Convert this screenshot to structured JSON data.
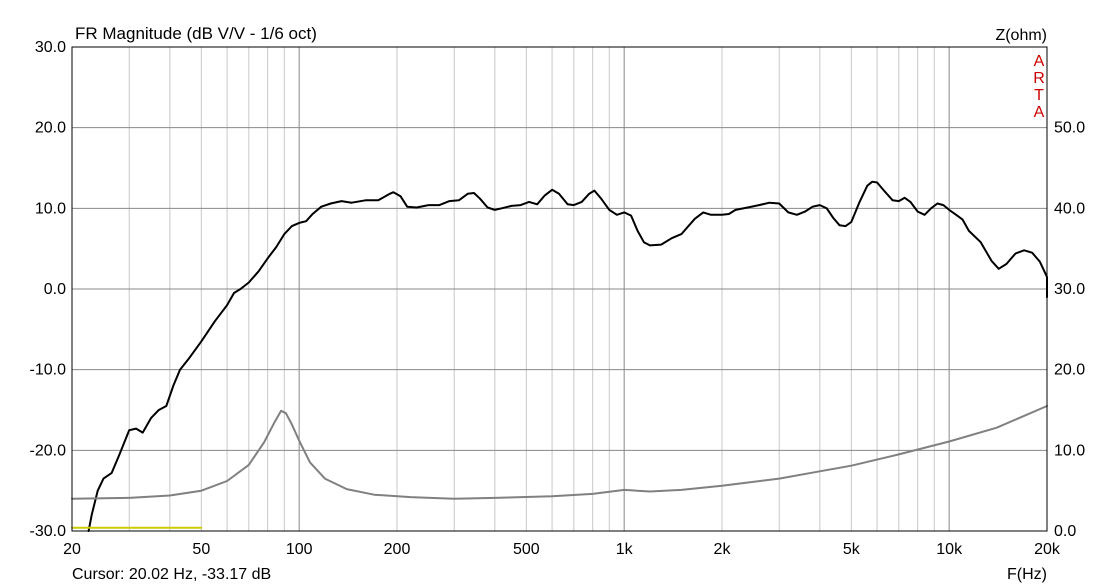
{
  "chart_data": {
    "type": "line",
    "title": "FR Magnitude (dB V/V - 1/6 oct)",
    "xlabel": "F(Hz)",
    "y2label": "Z(ohm)",
    "watermark": "ARTA",
    "x_scale": "log",
    "xlim": [
      20,
      20000
    ],
    "ylim": [
      -30,
      30
    ],
    "y2lim": [
      0,
      60
    ],
    "grid": true,
    "x_tick_labels": [
      {
        "value": 20,
        "label": "20"
      },
      {
        "value": 50,
        "label": "50"
      },
      {
        "value": 100,
        "label": "100"
      },
      {
        "value": 200,
        "label": "200"
      },
      {
        "value": 500,
        "label": "500"
      },
      {
        "value": 1000,
        "label": "1k"
      },
      {
        "value": 2000,
        "label": "2k"
      },
      {
        "value": 5000,
        "label": "5k"
      },
      {
        "value": 10000,
        "label": "10k"
      },
      {
        "value": 20000,
        "label": "20k"
      }
    ],
    "y_tick_labels": [
      {
        "value": 30,
        "label": "30.0"
      },
      {
        "value": 20,
        "label": "20.0"
      },
      {
        "value": 10,
        "label": "10.0"
      },
      {
        "value": 0,
        "label": "0.0"
      },
      {
        "value": -10,
        "label": "-10.0"
      },
      {
        "value": -20,
        "label": "-20.0"
      },
      {
        "value": -30,
        "label": "-30.0"
      }
    ],
    "y2_tick_labels": [
      {
        "value": 50,
        "label": "50.0"
      },
      {
        "value": 40,
        "label": "40.0"
      },
      {
        "value": 30,
        "label": "30.0"
      },
      {
        "value": 20,
        "label": "20.0"
      },
      {
        "value": 10,
        "label": "10.0"
      },
      {
        "value": 0,
        "label": "0.0"
      }
    ],
    "cursor_text": "Cursor: 20.02 Hz, -33.17 dB",
    "series": [
      {
        "axis": "left",
        "color": "#000000",
        "points": [
          [
            22.5,
            -30
          ],
          [
            23,
            -28
          ],
          [
            24,
            -25
          ],
          [
            25,
            -23.5
          ],
          [
            26.5,
            -22.8
          ],
          [
            28,
            -20.5
          ],
          [
            30,
            -17.5
          ],
          [
            31.5,
            -17.3
          ],
          [
            33,
            -17.8
          ],
          [
            35,
            -16
          ],
          [
            37,
            -15
          ],
          [
            39,
            -14.5
          ],
          [
            41,
            -12
          ],
          [
            43,
            -10
          ],
          [
            46,
            -8.5
          ],
          [
            50,
            -6.5
          ],
          [
            55,
            -4
          ],
          [
            60,
            -2
          ],
          [
            63,
            -0.5
          ],
          [
            66,
            0
          ],
          [
            70,
            0.8
          ],
          [
            75,
            2.2
          ],
          [
            80,
            3.8
          ],
          [
            85,
            5.2
          ],
          [
            90,
            6.8
          ],
          [
            95,
            7.8
          ],
          [
            100,
            8.2
          ],
          [
            105,
            8.4
          ],
          [
            110,
            9.3
          ],
          [
            117,
            10.2
          ],
          [
            125,
            10.6
          ],
          [
            135,
            10.9
          ],
          [
            145,
            10.7
          ],
          [
            160,
            11
          ],
          [
            175,
            11
          ],
          [
            190,
            11.8
          ],
          [
            195,
            12
          ],
          [
            205,
            11.5
          ],
          [
            215,
            10.2
          ],
          [
            230,
            10.1
          ],
          [
            250,
            10.4
          ],
          [
            270,
            10.4
          ],
          [
            290,
            10.9
          ],
          [
            310,
            11
          ],
          [
            330,
            11.8
          ],
          [
            345,
            11.9
          ],
          [
            360,
            11.2
          ],
          [
            380,
            10.1
          ],
          [
            400,
            9.8
          ],
          [
            420,
            10
          ],
          [
            450,
            10.3
          ],
          [
            480,
            10.4
          ],
          [
            510,
            10.8
          ],
          [
            540,
            10.5
          ],
          [
            570,
            11.6
          ],
          [
            600,
            12.3
          ],
          [
            630,
            11.8
          ],
          [
            670,
            10.5
          ],
          [
            700,
            10.4
          ],
          [
            740,
            10.8
          ],
          [
            780,
            11.8
          ],
          [
            810,
            12.2
          ],
          [
            850,
            11.2
          ],
          [
            900,
            9.8
          ],
          [
            950,
            9.2
          ],
          [
            1000,
            9.5
          ],
          [
            1050,
            9.1
          ],
          [
            1100,
            7.2
          ],
          [
            1150,
            5.8
          ],
          [
            1200,
            5.4
          ],
          [
            1300,
            5.5
          ],
          [
            1400,
            6.3
          ],
          [
            1500,
            6.8
          ],
          [
            1650,
            8.7
          ],
          [
            1750,
            9.5
          ],
          [
            1850,
            9.2
          ],
          [
            2000,
            9.2
          ],
          [
            2100,
            9.3
          ],
          [
            2200,
            9.8
          ],
          [
            2400,
            10.1
          ],
          [
            2600,
            10.4
          ],
          [
            2800,
            10.7
          ],
          [
            3000,
            10.6
          ],
          [
            3200,
            9.5
          ],
          [
            3400,
            9.2
          ],
          [
            3600,
            9.6
          ],
          [
            3800,
            10.2
          ],
          [
            4000,
            10.4
          ],
          [
            4200,
            10
          ],
          [
            4400,
            8.8
          ],
          [
            4600,
            7.9
          ],
          [
            4800,
            7.8
          ],
          [
            5000,
            8.3
          ],
          [
            5300,
            10.8
          ],
          [
            5600,
            12.8
          ],
          [
            5800,
            13.3
          ],
          [
            6000,
            13.2
          ],
          [
            6300,
            12.2
          ],
          [
            6700,
            11
          ],
          [
            7000,
            10.9
          ],
          [
            7300,
            11.3
          ],
          [
            7600,
            10.8
          ],
          [
            8000,
            9.6
          ],
          [
            8400,
            9.2
          ],
          [
            8800,
            10
          ],
          [
            9200,
            10.6
          ],
          [
            9600,
            10.4
          ],
          [
            10000,
            9.8
          ],
          [
            10500,
            9.2
          ],
          [
            11000,
            8.6
          ],
          [
            11500,
            7.2
          ],
          [
            12500,
            5.8
          ],
          [
            13500,
            3.5
          ],
          [
            14200,
            2.5
          ],
          [
            15000,
            3.1
          ],
          [
            16000,
            4.4
          ],
          [
            17000,
            4.8
          ],
          [
            18000,
            4.5
          ],
          [
            19000,
            3.4
          ],
          [
            20000,
            1.5
          ],
          [
            21000,
            -1
          ]
        ]
      },
      {
        "axis": "right",
        "color": "#808080",
        "points": [
          [
            20,
            4
          ],
          [
            30,
            4.1
          ],
          [
            40,
            4.4
          ],
          [
            50,
            5
          ],
          [
            60,
            6.2
          ],
          [
            70,
            8.2
          ],
          [
            78,
            11
          ],
          [
            84,
            13.5
          ],
          [
            88,
            14.9
          ],
          [
            91,
            14.6
          ],
          [
            95,
            13.2
          ],
          [
            100,
            11.2
          ],
          [
            108,
            8.5
          ],
          [
            120,
            6.5
          ],
          [
            140,
            5.2
          ],
          [
            170,
            4.5
          ],
          [
            220,
            4.2
          ],
          [
            300,
            4
          ],
          [
            400,
            4.1
          ],
          [
            600,
            4.3
          ],
          [
            800,
            4.6
          ],
          [
            1000,
            5.1
          ],
          [
            1200,
            4.9
          ],
          [
            1500,
            5.1
          ],
          [
            2000,
            5.6
          ],
          [
            3000,
            6.5
          ],
          [
            4000,
            7.4
          ],
          [
            5000,
            8.1
          ],
          [
            7000,
            9.5
          ],
          [
            10000,
            11.1
          ],
          [
            14000,
            12.8
          ],
          [
            20000,
            15.5
          ]
        ]
      },
      {
        "axis": "left",
        "color": "#cccc00",
        "points": [
          [
            20,
            -29.6
          ],
          [
            50,
            -29.6
          ]
        ]
      }
    ]
  }
}
